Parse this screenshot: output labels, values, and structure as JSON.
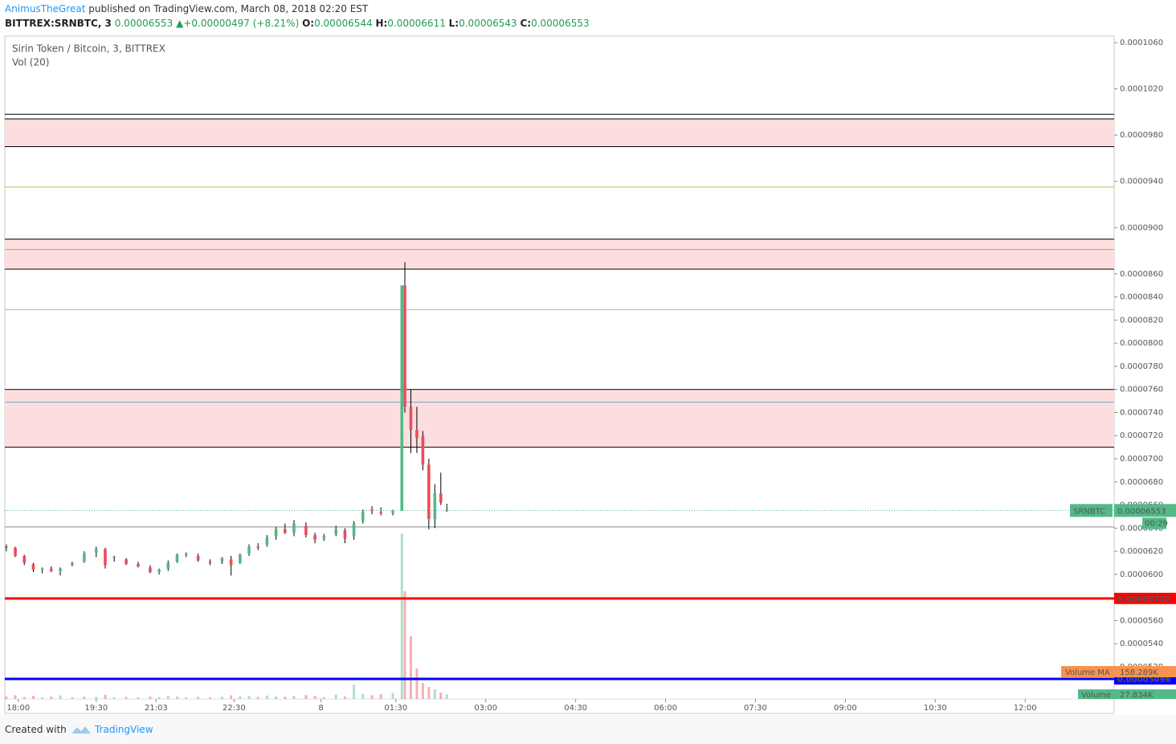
{
  "header": {
    "author": "AnimusTheGreat",
    "published": "published on TradingView.com, March 08, 2018 02:20 EST",
    "symbol": "BITTREX:SRNBTC, 3",
    "last": "0.00006553",
    "arrow": "▲",
    "change": "+0.00000497 (+8.21%)",
    "o_key": "O:",
    "o": "0.00006544",
    "h_key": "H:",
    "h": "0.00006611",
    "l_key": "L:",
    "l": "0.00006543",
    "c_key": "C:",
    "c": "0.00006553"
  },
  "chart_data": {
    "type": "candlestick",
    "title": "Sirin Token / Bitcoin, 3, BITTREX",
    "subtitle": "Vol (20)",
    "x": [
      0,
      3,
      6,
      9,
      12,
      15,
      18,
      22,
      26,
      30,
      33,
      36,
      40,
      44,
      48,
      51,
      54,
      57,
      60,
      64,
      68,
      72,
      75,
      78,
      81,
      84,
      87,
      90,
      93,
      96,
      100,
      103,
      106,
      110,
      113,
      116,
      119,
      122,
      125,
      129,
      132,
      133,
      135,
      137,
      139,
      141,
      143,
      145,
      147
    ],
    "series": [
      {
        "name": "SRNBTC",
        "up_color": "#53b987",
        "down_color": "#eb4d5c",
        "open": [
          6.24e-05,
          6.23e-05,
          6.16e-05,
          6.09e-05,
          6.04e-05,
          6.05e-05,
          6.03e-05,
          6.08e-05,
          6.11e-05,
          6.19e-05,
          6.22e-05,
          6.14e-05,
          6.13e-05,
          6.09e-05,
          6.06e-05,
          6.02e-05,
          6.05e-05,
          6.11e-05,
          6.17e-05,
          6.16e-05,
          6.11e-05,
          6.11e-05,
          6.13e-05,
          6.1e-05,
          6.18e-05,
          6.24e-05,
          6.26e-05,
          6.33e-05,
          6.39e-05,
          6.36e-05,
          6.42e-05,
          6.34e-05,
          6.31e-05,
          6.35e-05,
          6.38e-05,
          6.33e-05,
          6.46e-05,
          6.56e-05,
          6.54e-05,
          6.53e-05,
          6.55e-05,
          8.5e-05,
          7.45e-05,
          7.25e-05,
          7.2e-05,
          6.95e-05,
          6.48e-05,
          6.7e-05,
          6.544e-05
        ],
        "high": [
          6.26e-05,
          6.24e-05,
          6.17e-05,
          6.1e-05,
          6.06e-05,
          6.07e-05,
          6.06e-05,
          6.11e-05,
          6.2e-05,
          6.24e-05,
          6.23e-05,
          6.16e-05,
          6.14e-05,
          6.11e-05,
          6.08e-05,
          6.05e-05,
          6.12e-05,
          6.18e-05,
          6.19e-05,
          6.18e-05,
          6.13e-05,
          6.15e-05,
          6.16e-05,
          6.18e-05,
          6.26e-05,
          6.27e-05,
          6.34e-05,
          6.41e-05,
          6.44e-05,
          6.47e-05,
          6.45e-05,
          6.36e-05,
          6.35e-05,
          6.42e-05,
          6.4e-05,
          6.46e-05,
          6.56e-05,
          6.59e-05,
          6.58e-05,
          6.56e-05,
          8.5e-05,
          8.7e-05,
          7.6e-05,
          7.45e-05,
          7.24e-05,
          7e-05,
          6.78e-05,
          6.88e-05,
          6.611e-05
        ],
        "low": [
          6.2e-05,
          6.15e-05,
          6.08e-05,
          6.02e-05,
          6.01e-05,
          6.02e-05,
          5.99e-05,
          6.07e-05,
          6.1e-05,
          6.15e-05,
          6.05e-05,
          6.11e-05,
          6.08e-05,
          6.06e-05,
          6.01e-05,
          6e-05,
          6.03e-05,
          6.1e-05,
          6.15e-05,
          6.11e-05,
          6.08e-05,
          6.09e-05,
          5.99e-05,
          6.09e-05,
          6.16e-05,
          6.21e-05,
          6.24e-05,
          6.3e-05,
          6.35e-05,
          6.33e-05,
          6.32e-05,
          6.27e-05,
          6.29e-05,
          6.33e-05,
          6.27e-05,
          6.3e-05,
          6.44e-05,
          6.52e-05,
          6.51e-05,
          6.51e-05,
          6.55e-05,
          7.4e-05,
          7.05e-05,
          7.05e-05,
          6.9e-05,
          6.39e-05,
          6.4e-05,
          6.6e-05,
          6.543e-05
        ],
        "close": [
          6.23e-05,
          6.16e-05,
          6.1e-05,
          6.04e-05,
          6.05e-05,
          6.03e-05,
          6.05e-05,
          6.1e-05,
          6.18e-05,
          6.22e-05,
          6.08e-05,
          6.15e-05,
          6.09e-05,
          6.07e-05,
          6.02e-05,
          6.04e-05,
          6.1e-05,
          6.17e-05,
          6.18e-05,
          6.12e-05,
          6.1e-05,
          6.14e-05,
          6.08e-05,
          6.17e-05,
          6.24e-05,
          6.23e-05,
          6.32e-05,
          6.39e-05,
          6.36e-05,
          6.44e-05,
          6.34e-05,
          6.3e-05,
          6.33e-05,
          6.39e-05,
          6.31e-05,
          6.44e-05,
          6.54e-05,
          6.55e-05,
          6.53e-05,
          6.55e-05,
          8.5e-05,
          7.45e-05,
          7.25e-05,
          7.18e-05,
          6.95e-05,
          6.48e-05,
          6.7e-05,
          6.62e-05,
          6.553e-05
        ]
      },
      {
        "name": "Volume",
        "axis": "y2",
        "up_color": "#53b987",
        "down_color": "#eb4d5c",
        "label_color": "#53b987",
        "values": [
          15000,
          22000,
          12000,
          18000,
          9000,
          14000,
          20000,
          11000,
          16000,
          13000,
          25000,
          10000,
          12000,
          9000,
          15000,
          11000,
          17000,
          14000,
          10000,
          12000,
          9000,
          13000,
          21000,
          15000,
          18000,
          12000,
          20000,
          16000,
          14000,
          19000,
          23000,
          17000,
          12000,
          26000,
          15000,
          84000,
          30000,
          22000,
          28000,
          35000,
          959000,
          624000,
          363000,
          177000,
          93000,
          70000,
          56000,
          37000,
          27834
        ],
        "value_labels": [
          null,
          null,
          null,
          null,
          null,
          null,
          null,
          null,
          null,
          null,
          null,
          null,
          null,
          null,
          null,
          null,
          null,
          null,
          null,
          null,
          null,
          null,
          null,
          null,
          null,
          null,
          null,
          null,
          null,
          null,
          null,
          null,
          null,
          null,
          null,
          null,
          null,
          null,
          null,
          null,
          null,
          null,
          null,
          null,
          null,
          null,
          null,
          null,
          "27.834K"
        ]
      }
    ],
    "volume_ma": {
      "name": "Volume MA",
      "value": 158289,
      "label": "158.289K",
      "color": "#f7934f"
    },
    "last_price": {
      "value": 6.553e-05,
      "label": "0.00006553"
    },
    "countdown": "00:29",
    "zones": [
      {
        "low": 9.7e-05,
        "high": 9.94e-05,
        "color": "#fddede"
      },
      {
        "low": 8.64e-05,
        "high": 8.9e-05,
        "color": "#fddede"
      },
      {
        "low": 7.1e-05,
        "high": 7.6e-05,
        "color": "#fddede"
      }
    ],
    "levels": [
      {
        "value": 9.98e-05,
        "color": "#000000"
      },
      {
        "value": 9.35e-05,
        "color": "#a5c95a"
      },
      {
        "value": 8.81e-05,
        "color": "#7cc576"
      },
      {
        "value": 8.29e-05,
        "color": "#f0a050"
      },
      {
        "value": 7.49e-05,
        "color": "#6fa8dc"
      },
      {
        "value": 6.41e-05,
        "color": "#888888"
      },
      {
        "value": 5.792e-05,
        "label": "0.00005792",
        "color": "#ff0000",
        "width": 3
      },
      {
        "value": 5.096e-05,
        "label": "0.00005096",
        "color": "#0000ff",
        "width": 3
      }
    ],
    "xlim": [
      -0.5,
      369.7
    ],
    "xticks": [
      {
        "value": 4,
        "label": "18:00"
      },
      {
        "value": 30,
        "label": "19:30"
      },
      {
        "value": 50,
        "label": "21:03"
      },
      {
        "value": 76,
        "label": "22:30"
      },
      {
        "value": 105,
        "label": "8"
      },
      {
        "value": 130,
        "label": "01:30"
      },
      {
        "value": 160,
        "label": "03:00"
      },
      {
        "value": 190,
        "label": "04:30"
      },
      {
        "value": 220,
        "label": "06:00"
      },
      {
        "value": 250,
        "label": "07:30"
      },
      {
        "value": 280,
        "label": "09:00"
      },
      {
        "value": 310,
        "label": "10:30"
      },
      {
        "value": 340,
        "label": "12:00"
      }
    ],
    "ylim": [
      4.922e-05,
      0.00010656
    ],
    "yticks": [
      {
        "value": 0.000106,
        "label": "0.0001060"
      },
      {
        "value": 0.000102,
        "label": "0.0001020"
      },
      {
        "value": 9.8e-05,
        "label": "0.0000980"
      },
      {
        "value": 9.4e-05,
        "label": "0.0000940"
      },
      {
        "value": 9e-05,
        "label": "0.0000900"
      },
      {
        "value": 8.6e-05,
        "label": "0.0000860"
      },
      {
        "value": 8.4e-05,
        "label": "0.0000840"
      },
      {
        "value": 8.2e-05,
        "label": "0.0000820"
      },
      {
        "value": 8e-05,
        "label": "0.0000800"
      },
      {
        "value": 7.8e-05,
        "label": "0.0000780"
      },
      {
        "value": 7.6e-05,
        "label": "0.0000760"
      },
      {
        "value": 7.4e-05,
        "label": "0.0000740"
      },
      {
        "value": 7.2e-05,
        "label": "0.0000720"
      },
      {
        "value": 7e-05,
        "label": "0.0000700"
      },
      {
        "value": 6.8e-05,
        "label": "0.0000680"
      },
      {
        "value": 6.6e-05,
        "label": "0.0000660"
      },
      {
        "value": 6.4e-05,
        "label": "0.0000640"
      },
      {
        "value": 6.2e-05,
        "label": "0.0000620"
      },
      {
        "value": 6e-05,
        "label": "0.0000600"
      },
      {
        "value": 5.6e-05,
        "label": "0.0000560"
      },
      {
        "value": 5.4e-05,
        "label": "0.0000540"
      },
      {
        "value": 5.2e-05,
        "label": "0.0000520"
      }
    ],
    "y2lim": [
      0,
      3840000
    ],
    "grid": false
  },
  "footer": {
    "created": "Created with",
    "brand": "TradingView"
  }
}
